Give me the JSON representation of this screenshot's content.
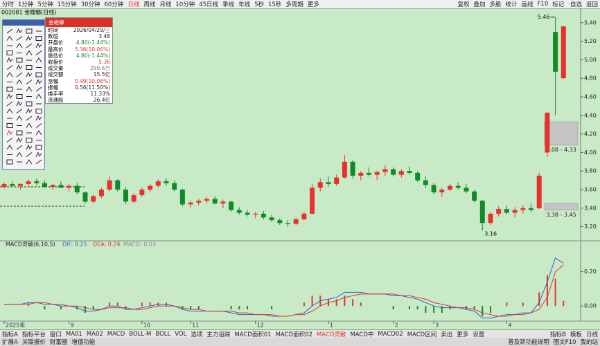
{
  "toolbar": {
    "periods": [
      "分时",
      "1分钟",
      "5分钟",
      "15分钟",
      "30分钟",
      "60分钟",
      "日线",
      "周线",
      "月线",
      "10分钟",
      "45日线",
      "季线",
      "年线",
      "5秒",
      "15秒",
      "多周期",
      "更多"
    ],
    "active": 6,
    "tools": [
      "复权",
      "叠加",
      "多股",
      "统计",
      "画线",
      "F10",
      "标记",
      "·自选",
      "返回"
    ]
  },
  "stock_title": "002081 金螳螂(日线)",
  "info_panel": {
    "title": "金螳螂",
    "rows": [
      {
        "label": "时间",
        "value": "2026/04/29/三",
        "color": "#222"
      },
      {
        "label": "数值",
        "value": "3.48",
        "color": "#222"
      },
      {
        "label": "开盘价",
        "value": "4.80(-1.44%)",
        "color": "#138a2a"
      },
      {
        "label": "最高价",
        "value": "5.36(10.06%)",
        "color": "#e8312f"
      },
      {
        "label": "最低价",
        "value": "4.80(-1.44%)",
        "color": "#138a2a"
      },
      {
        "label": "收盘价",
        "value": "5.36",
        "color": "#e8312f"
      },
      {
        "label": "成交量",
        "value": "299.6万",
        "color": "#777"
      },
      {
        "label": "成交额",
        "value": "15.5亿",
        "color": "#222"
      },
      {
        "label": "涨幅",
        "value": "0.49(10.06%)",
        "color": "#e8312f"
      },
      {
        "label": "振幅",
        "value": "0.56(11.50%)",
        "color": "#222"
      },
      {
        "label": "换手率",
        "value": "11.33%",
        "color": "#222"
      },
      {
        "label": "流通股",
        "value": "26.4亿",
        "color": "#222"
      }
    ]
  },
  "chart_data": {
    "type": "candlestick",
    "categories": [
      "2025年",
      null,
      null,
      null,
      null,
      null,
      null,
      null,
      "9",
      null,
      null,
      null,
      null,
      null,
      null,
      null,
      null,
      "10",
      null,
      null,
      null,
      null,
      null,
      "11",
      null,
      null,
      null,
      null,
      null,
      null,
      null,
      "12",
      null,
      null,
      null,
      null,
      null,
      null,
      null,
      null,
      "1",
      null,
      null,
      null,
      null,
      null,
      null,
      null,
      "2",
      null,
      null,
      null,
      null,
      "3",
      null,
      null,
      null,
      null,
      null,
      null,
      null,
      null,
      "4",
      null,
      null,
      null,
      null,
      null,
      null,
      null
    ],
    "open": [
      3.63,
      3.66,
      3.64,
      3.66,
      3.69,
      3.67,
      3.63,
      3.65,
      3.62,
      3.64,
      3.57,
      3.47,
      3.53,
      3.6,
      3.7,
      3.6,
      3.47,
      3.54,
      3.6,
      3.64,
      3.69,
      3.67,
      3.6,
      3.44,
      3.46,
      3.48,
      3.5,
      3.45,
      3.47,
      3.38,
      3.35,
      3.33,
      3.34,
      3.3,
      3.27,
      3.24,
      3.23,
      3.28,
      3.34,
      3.62,
      3.68,
      3.66,
      3.73,
      3.9,
      3.75,
      3.78,
      3.76,
      3.79,
      3.82,
      3.76,
      3.8,
      3.78,
      3.7,
      3.65,
      3.57,
      3.6,
      3.64,
      3.62,
      3.58,
      3.48,
      3.24,
      3.34,
      3.39,
      3.35,
      3.38,
      3.4,
      3.4,
      4.0,
      5.3,
      4.8
    ],
    "high": [
      3.68,
      3.69,
      3.67,
      3.71,
      3.72,
      3.7,
      3.66,
      3.69,
      3.66,
      3.67,
      3.58,
      3.55,
      3.62,
      3.74,
      3.71,
      3.63,
      3.56,
      3.62,
      3.66,
      3.71,
      3.72,
      3.7,
      3.61,
      3.48,
      3.5,
      3.52,
      3.53,
      3.49,
      3.48,
      3.41,
      3.38,
      3.36,
      3.37,
      3.33,
      3.29,
      3.27,
      3.3,
      3.36,
      3.66,
      3.72,
      3.74,
      3.76,
      3.97,
      3.92,
      3.8,
      3.84,
      3.8,
      3.86,
      3.84,
      3.82,
      3.85,
      3.8,
      3.74,
      3.67,
      3.62,
      3.66,
      3.68,
      3.66,
      3.6,
      3.49,
      3.36,
      3.42,
      3.43,
      3.41,
      3.43,
      3.45,
      3.78,
      4.43,
      5.46,
      5.36
    ],
    "low": [
      3.61,
      3.63,
      3.6,
      3.64,
      3.65,
      3.62,
      3.6,
      3.63,
      3.58,
      3.55,
      3.45,
      3.45,
      3.51,
      3.58,
      3.58,
      3.44,
      3.45,
      3.52,
      3.57,
      3.62,
      3.64,
      3.58,
      3.42,
      3.41,
      3.43,
      3.45,
      3.44,
      3.4,
      3.36,
      3.33,
      3.31,
      3.29,
      3.28,
      3.25,
      3.22,
      3.2,
      3.22,
      3.27,
      3.33,
      3.58,
      3.63,
      3.64,
      3.72,
      3.72,
      3.7,
      3.74,
      3.7,
      3.75,
      3.74,
      3.73,
      3.76,
      3.68,
      3.62,
      3.55,
      3.52,
      3.58,
      3.6,
      3.56,
      3.46,
      3.16,
      3.22,
      3.31,
      3.33,
      3.3,
      3.34,
      3.36,
      3.39,
      3.95,
      4.4,
      4.8
    ],
    "close": [
      3.66,
      3.64,
      3.66,
      3.69,
      3.67,
      3.63,
      3.65,
      3.62,
      3.64,
      3.57,
      3.47,
      3.53,
      3.6,
      3.7,
      3.6,
      3.47,
      3.54,
      3.6,
      3.64,
      3.69,
      3.67,
      3.6,
      3.44,
      3.46,
      3.48,
      3.5,
      3.45,
      3.47,
      3.38,
      3.35,
      3.33,
      3.34,
      3.3,
      3.27,
      3.24,
      3.23,
      3.28,
      3.34,
      3.62,
      3.68,
      3.66,
      3.73,
      3.9,
      3.75,
      3.78,
      3.76,
      3.79,
      3.82,
      3.76,
      3.8,
      3.78,
      3.7,
      3.65,
      3.57,
      3.6,
      3.64,
      3.62,
      3.58,
      3.48,
      3.24,
      3.34,
      3.39,
      3.35,
      3.38,
      3.4,
      3.38,
      3.75,
      4.43,
      4.87,
      5.36
    ],
    "ylim": [
      3.07,
      5.54
    ],
    "yticks": [
      {
        "value": 5.4,
        "label": "5.40"
      },
      {
        "value": 5.2,
        "label": "5.20"
      },
      {
        "value": 5.0,
        "label": "5.00"
      },
      {
        "value": 4.8,
        "label": "4.80"
      },
      {
        "value": 4.6,
        "label": "4.60"
      },
      {
        "value": 4.4,
        "label": "4.40"
      },
      {
        "value": 4.2,
        "label": "4.20"
      },
      {
        "value": 4.0,
        "label": "4.00"
      },
      {
        "value": 3.8,
        "label": "3.80"
      },
      {
        "value": 3.6,
        "label": "3.60"
      },
      {
        "value": 3.4,
        "label": "3.40"
      },
      {
        "value": 3.2,
        "label": "3.20"
      }
    ],
    "up_color": "#e8312f",
    "down_color": "#138a2a",
    "high_label": {
      "value": 5.46,
      "label": "5.46"
    },
    "low_label": {
      "value": 3.16,
      "label": "3.16"
    },
    "zones": [
      {
        "low": 4.08,
        "high": 4.33,
        "label": "4.08 - 4.33"
      },
      {
        "low": 3.38,
        "high": 3.45,
        "label": "3.38 - 3.45"
      }
    ]
  },
  "indicator": {
    "type": "macd",
    "title": "MACD灵敏(6,10,5)",
    "dif_label": "DIF: 0.25",
    "dea_label": "DEA: 0.24",
    "macd_label": "MACD: 0.03",
    "dif_color": "#2a5fd6",
    "dea_color": "#e8312f",
    "macd_color": "#888",
    "dif": [
      0.01,
      0.01,
      0.01,
      0.02,
      0.02,
      0.01,
      0.01,
      0,
      0,
      -0.01,
      -0.03,
      -0.03,
      -0.02,
      0,
      0,
      -0.02,
      -0.02,
      -0.01,
      0,
      0.01,
      0.01,
      0,
      -0.02,
      -0.03,
      -0.03,
      -0.03,
      -0.03,
      -0.03,
      -0.04,
      -0.05,
      -0.05,
      -0.05,
      -0.05,
      -0.06,
      -0.06,
      -0.06,
      -0.05,
      -0.04,
      0,
      0.03,
      0.04,
      0.05,
      0.08,
      0.08,
      0.08,
      0.07,
      0.07,
      0.07,
      0.06,
      0.06,
      0.05,
      0.04,
      0.02,
      0,
      -0.01,
      -0.01,
      -0.01,
      -0.02,
      -0.03,
      -0.07,
      -0.07,
      -0.06,
      -0.05,
      -0.05,
      -0.04,
      -0.04,
      0.02,
      0.14,
      0.28,
      0.25
    ],
    "dea": [
      0.01,
      0.01,
      0.01,
      0.01,
      0.02,
      0.02,
      0.01,
      0.01,
      0,
      0,
      -0.01,
      -0.02,
      -0.02,
      -0.01,
      -0.01,
      -0.01,
      -0.02,
      -0.02,
      -0.01,
      0,
      0,
      0,
      -0.01,
      -0.02,
      -0.02,
      -0.03,
      -0.03,
      -0.03,
      -0.03,
      -0.04,
      -0.04,
      -0.05,
      -0.05,
      -0.05,
      -0.06,
      -0.06,
      -0.05,
      -0.05,
      -0.03,
      0,
      0.02,
      0.03,
      0.05,
      0.06,
      0.07,
      0.07,
      0.07,
      0.07,
      0.07,
      0.06,
      0.06,
      0.05,
      0.04,
      0.02,
      0.01,
      0,
      -0.01,
      -0.01,
      -0.02,
      -0.04,
      -0.05,
      -0.06,
      -0.06,
      -0.05,
      -0.05,
      -0.04,
      -0.02,
      0.05,
      0.2,
      0.24
    ],
    "macd": [
      0,
      0,
      0,
      0.02,
      0,
      -0.02,
      0,
      -0.02,
      0,
      -0.02,
      -0.04,
      -0.02,
      0,
      0.02,
      0.02,
      -0.02,
      0,
      0.02,
      0.02,
      0.02,
      0.02,
      0,
      -0.02,
      -0.02,
      -0.02,
      0,
      0,
      0,
      -0.02,
      -0.02,
      -0.02,
      0,
      0,
      -0.02,
      0,
      0,
      0,
      0.02,
      0.06,
      0.06,
      0.04,
      0.04,
      0.06,
      0.04,
      0.02,
      0,
      0,
      0,
      -0.02,
      0,
      -0.02,
      -0.02,
      -0.04,
      -0.04,
      -0.04,
      -0.02,
      0,
      -0.02,
      -0.02,
      -0.06,
      -0.04,
      0,
      0.02,
      0,
      0.02,
      0,
      0.08,
      0.18,
      0.16,
      0.03
    ],
    "ylim": [
      -0.08,
      0.34
    ],
    "yticks": [
      {
        "value": 0.2,
        "label": "0.20"
      },
      {
        "value": 0,
        "label": "0.00"
      }
    ]
  },
  "tabs": {
    "items": [
      "指标A",
      "指标平台",
      "窗口",
      "MA01",
      "MA02",
      "MACD",
      "BOLL-M",
      "BOLL",
      "VOL",
      "选项",
      "主力追踪",
      "MACD面积01",
      "MACD面积02",
      "MACD灵敏",
      "MACD中",
      "MACD02",
      "MACD区间",
      "卖出",
      "更多",
      "设置"
    ],
    "active": 13,
    "right": [
      "指标B",
      "模板",
      "日线"
    ]
  },
  "footer": {
    "left": [
      "扩展A",
      "关联报价",
      "财富圈",
      "增值功能"
    ],
    "right": [
      "普及新功能说明",
      "图文F10",
      "我的站"
    ]
  }
}
